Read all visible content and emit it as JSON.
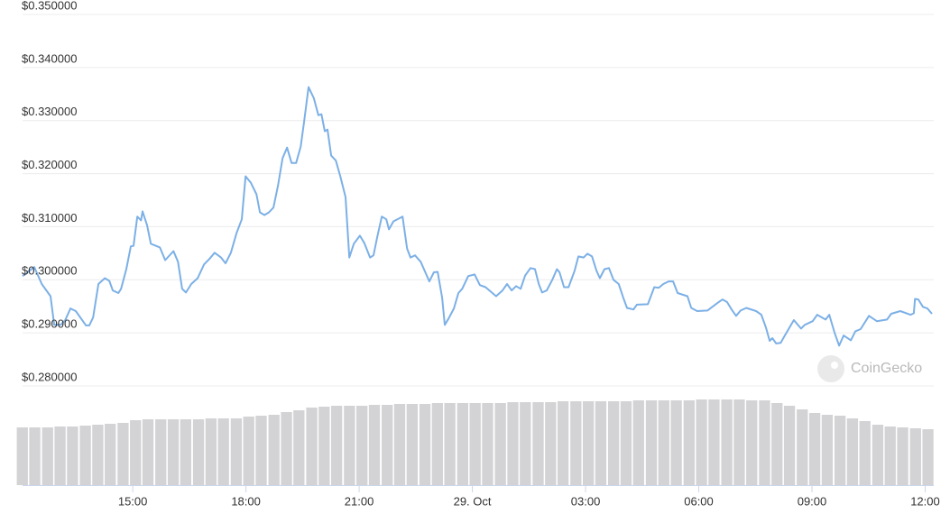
{
  "chart_data": {
    "type": "line",
    "grid": true,
    "watermark": "CoinGecko",
    "xlim": [
      12.08,
      36.18
    ],
    "xticks": [
      {
        "value": 15,
        "label": "15:00"
      },
      {
        "value": 18,
        "label": "18:00"
      },
      {
        "value": 21,
        "label": "21:00"
      },
      {
        "value": 24,
        "label": "29. Oct"
      },
      {
        "value": 27,
        "label": "03:00"
      },
      {
        "value": 30,
        "label": "06:00"
      },
      {
        "value": 33,
        "label": "09:00"
      },
      {
        "value": 36,
        "label": "12:00"
      }
    ],
    "ylim": [
      0.28,
      0.35
    ],
    "yticks": [
      {
        "value": 0.28,
        "label": "$0.280000"
      },
      {
        "value": 0.29,
        "label": "$0.290000"
      },
      {
        "value": 0.3,
        "label": "$0.300000"
      },
      {
        "value": 0.31,
        "label": "$0.310000"
      },
      {
        "value": 0.32,
        "label": "$0.320000"
      },
      {
        "value": 0.33,
        "label": "$0.330000"
      },
      {
        "value": 0.34,
        "label": "$0.340000"
      },
      {
        "value": 0.35,
        "label": "$0.350000"
      }
    ],
    "y2lim": [
      0,
      110
    ],
    "series": [
      {
        "type": "line",
        "color": "#7cb0e6",
        "x": [
          12.08,
          12.39,
          12.59,
          12.82,
          12.92,
          13.09,
          13.21,
          13.35,
          13.49,
          13.76,
          13.85,
          13.95,
          14.09,
          14.26,
          14.38,
          14.47,
          14.62,
          14.69,
          14.83,
          14.95,
          15.02,
          15.12,
          15.22,
          15.26,
          15.38,
          15.48,
          15.72,
          15.86,
          16.08,
          16.2,
          16.31,
          16.41,
          16.55,
          16.72,
          16.89,
          17.03,
          17.17,
          17.34,
          17.46,
          17.6,
          17.75,
          17.89,
          17.99,
          18.13,
          18.28,
          18.37,
          18.49,
          18.61,
          18.73,
          18.85,
          18.97,
          19.09,
          19.21,
          19.33,
          19.45,
          19.54,
          19.66,
          19.8,
          19.92,
          20.0,
          20.09,
          20.16,
          20.26,
          20.38,
          20.5,
          20.64,
          20.74,
          20.86,
          21.02,
          21.14,
          21.29,
          21.38,
          21.48,
          21.6,
          21.72,
          21.79,
          21.91,
          22.15,
          22.27,
          22.36,
          22.48,
          22.63,
          22.86,
          22.98,
          23.08,
          23.2,
          23.27,
          23.37,
          23.51,
          23.63,
          23.73,
          23.89,
          24.06,
          24.2,
          24.35,
          24.63,
          24.8,
          24.92,
          25.04,
          25.16,
          25.28,
          25.4,
          25.54,
          25.66,
          25.76,
          25.85,
          25.97,
          26.12,
          26.24,
          26.31,
          26.43,
          26.55,
          26.71,
          26.81,
          26.95,
          27.05,
          27.17,
          27.29,
          27.38,
          27.5,
          27.62,
          27.74,
          27.88,
          28.0,
          28.1,
          28.27,
          28.36,
          28.65,
          28.82,
          28.94,
          29.06,
          29.2,
          29.32,
          29.44,
          29.7,
          29.8,
          29.96,
          30.23,
          30.49,
          30.63,
          30.75,
          30.87,
          30.99,
          31.11,
          31.26,
          31.52,
          31.66,
          31.78,
          31.88,
          31.95,
          32.05,
          32.17,
          32.28,
          32.52,
          32.71,
          32.81,
          33.02,
          33.14,
          33.36,
          33.46,
          33.6,
          33.72,
          33.84,
          34.03,
          34.15,
          34.29,
          34.51,
          34.72,
          34.99,
          35.1,
          35.34,
          35.61,
          35.7,
          35.73,
          35.82,
          35.94,
          36.06,
          36.18
        ],
        "values": [
          0.3007,
          0.3024,
          0.2992,
          0.2969,
          0.2915,
          0.2915,
          0.2924,
          0.2946,
          0.2941,
          0.2914,
          0.2914,
          0.2929,
          0.2992,
          0.3003,
          0.2998,
          0.298,
          0.2975,
          0.2983,
          0.302,
          0.3063,
          0.3064,
          0.3119,
          0.3112,
          0.3129,
          0.3103,
          0.3068,
          0.3061,
          0.3037,
          0.3054,
          0.3034,
          0.2983,
          0.2976,
          0.2992,
          0.3003,
          0.3029,
          0.3039,
          0.3051,
          0.3042,
          0.3031,
          0.3051,
          0.3088,
          0.3114,
          0.3195,
          0.3183,
          0.3161,
          0.3127,
          0.3122,
          0.3127,
          0.3136,
          0.3178,
          0.3229,
          0.3249,
          0.322,
          0.322,
          0.3251,
          0.3297,
          0.3363,
          0.3342,
          0.331,
          0.3312,
          0.328,
          0.3283,
          0.3234,
          0.3225,
          0.3195,
          0.3156,
          0.3042,
          0.3068,
          0.3083,
          0.3069,
          0.3042,
          0.3046,
          0.3081,
          0.3119,
          0.3114,
          0.3095,
          0.311,
          0.3119,
          0.3059,
          0.3042,
          0.3046,
          0.3034,
          0.2997,
          0.3014,
          0.3015,
          0.2966,
          0.2915,
          0.2927,
          0.2946,
          0.2975,
          0.2983,
          0.3007,
          0.301,
          0.299,
          0.2986,
          0.2969,
          0.298,
          0.2992,
          0.298,
          0.2988,
          0.2983,
          0.3008,
          0.3022,
          0.302,
          0.2992,
          0.2976,
          0.298,
          0.3,
          0.302,
          0.3014,
          0.2986,
          0.2986,
          0.3017,
          0.3044,
          0.3042,
          0.3049,
          0.3044,
          0.3017,
          0.3003,
          0.302,
          0.3022,
          0.3,
          0.2992,
          0.2966,
          0.2947,
          0.2944,
          0.2953,
          0.2954,
          0.2986,
          0.2985,
          0.2992,
          0.2997,
          0.2997,
          0.2975,
          0.2969,
          0.2947,
          0.2941,
          0.2942,
          0.2956,
          0.2963,
          0.2958,
          0.2944,
          0.2932,
          0.2942,
          0.2947,
          0.2941,
          0.2934,
          0.291,
          0.2885,
          0.289,
          0.288,
          0.2881,
          0.2895,
          0.2924,
          0.2908,
          0.2915,
          0.2922,
          0.2934,
          0.2925,
          0.2934,
          0.29,
          0.2876,
          0.2895,
          0.2886,
          0.2903,
          0.2907,
          0.2932,
          0.2922,
          0.2925,
          0.2936,
          0.2941,
          0.2934,
          0.2937,
          0.2964,
          0.2963,
          0.2949,
          0.2946,
          0.2936
        ]
      },
      {
        "type": "bar",
        "axis": "y2",
        "color": "#d3d3d6",
        "x": [
          12.08,
          12.41,
          12.75,
          13.08,
          13.41,
          13.75,
          14.08,
          14.41,
          14.75,
          15.08,
          15.41,
          15.75,
          16.08,
          16.41,
          16.75,
          17.08,
          17.41,
          17.75,
          18.08,
          18.41,
          18.75,
          19.08,
          19.41,
          19.75,
          20.08,
          20.41,
          20.75,
          21.08,
          21.41,
          21.75,
          22.08,
          22.41,
          22.75,
          23.08,
          23.41,
          23.75,
          24.08,
          24.41,
          24.75,
          25.08,
          25.41,
          25.75,
          26.08,
          26.41,
          26.75,
          27.08,
          27.41,
          27.75,
          28.08,
          28.41,
          28.75,
          29.08,
          29.41,
          29.75,
          30.08,
          30.41,
          30.75,
          31.08,
          31.41,
          31.75,
          32.08,
          32.41,
          32.75,
          33.08,
          33.41,
          33.75,
          34.08,
          34.41,
          34.75,
          35.08,
          35.41,
          35.75,
          36.08
        ],
        "values": [
          64,
          64,
          64,
          65,
          65,
          66,
          67,
          68,
          69,
          72,
          73,
          73,
          73,
          73,
          73,
          74,
          74,
          74,
          76,
          77,
          78,
          81,
          83,
          86,
          87,
          88,
          88,
          88,
          89,
          89,
          90,
          90,
          90,
          91,
          91,
          91,
          91,
          91,
          91,
          92,
          92,
          92,
          92,
          93,
          93,
          93,
          93,
          93,
          93,
          94,
          94,
          94,
          94,
          94,
          95,
          95,
          95,
          95,
          94,
          94,
          91,
          88,
          84,
          80,
          78,
          77,
          74,
          71,
          67,
          65,
          64,
          63,
          62
        ]
      }
    ]
  }
}
